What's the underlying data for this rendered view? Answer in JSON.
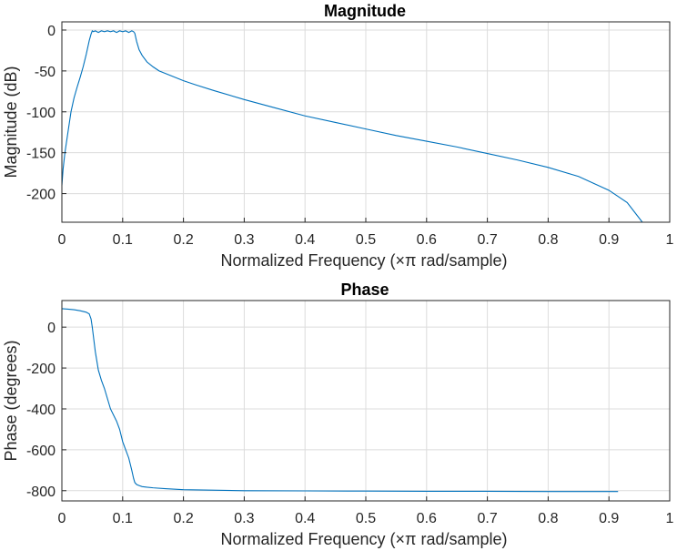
{
  "chart_data": [
    {
      "type": "line",
      "title": "Magnitude",
      "xlabel": "Normalized Frequency  (×π rad/sample)",
      "ylabel": "Magnitude (dB)",
      "xlim": [
        0,
        1
      ],
      "ylim": [
        -235,
        10
      ],
      "xticks": [
        0,
        0.1,
        0.2,
        0.3,
        0.4,
        0.5,
        0.6,
        0.7,
        0.8,
        0.9,
        1
      ],
      "xtick_labels": [
        "0",
        "0.1",
        "0.2",
        "0.3",
        "0.4",
        "0.5",
        "0.6",
        "0.7",
        "0.8",
        "0.9",
        "1"
      ],
      "yticks": [
        0,
        -50,
        -100,
        -150,
        -200
      ],
      "ytick_labels": [
        "0",
        "-50",
        "-100",
        "-150",
        "-200"
      ],
      "grid": true,
      "color": "#0072BD",
      "series": [
        {
          "x": [
            0,
            0.002,
            0.005,
            0.01,
            0.015,
            0.02,
            0.025,
            0.03,
            0.035,
            0.04,
            0.045,
            0.048,
            0.05,
            0.052,
            0.055,
            0.06,
            0.065,
            0.07,
            0.075,
            0.08,
            0.085,
            0.09,
            0.095,
            0.1,
            0.105,
            0.11,
            0.115,
            0.118,
            0.12,
            0.123,
            0.127,
            0.132,
            0.14,
            0.15,
            0.16,
            0.18,
            0.2,
            0.22,
            0.25,
            0.3,
            0.35,
            0.4,
            0.45,
            0.5,
            0.55,
            0.6,
            0.65,
            0.7,
            0.75,
            0.8,
            0.85,
            0.9,
            0.93,
            0.955
          ],
          "y": [
            -190,
            -170,
            -150,
            -125,
            -100,
            -83,
            -70,
            -58,
            -45,
            -30,
            -13,
            -5,
            -1,
            -2,
            -1,
            -3,
            -1,
            -2,
            -1,
            -2,
            -1,
            -3,
            -1,
            -2,
            -1,
            -3,
            -1,
            -2,
            -4,
            -14,
            -24,
            -31,
            -39,
            -45,
            -50,
            -56,
            -62,
            -67,
            -74,
            -85,
            -95,
            -105,
            -113,
            -121,
            -129,
            -136,
            -143,
            -151,
            -159,
            -168,
            -179,
            -196,
            -211,
            -235
          ]
        }
      ]
    },
    {
      "type": "line",
      "title": "Phase",
      "xlabel": "Normalized Frequency  (×π rad/sample)",
      "ylabel": "Phase (degrees)",
      "xlim": [
        0,
        1
      ],
      "ylim": [
        -850,
        130
      ],
      "xticks": [
        0,
        0.1,
        0.2,
        0.3,
        0.4,
        0.5,
        0.6,
        0.7,
        0.8,
        0.9,
        1
      ],
      "xtick_labels": [
        "0",
        "0.1",
        "0.2",
        "0.3",
        "0.4",
        "0.5",
        "0.6",
        "0.7",
        "0.8",
        "0.9",
        "1"
      ],
      "yticks": [
        0,
        -200,
        -400,
        -600,
        -800
      ],
      "ytick_labels": [
        "0",
        "-200",
        "-400",
        "-600",
        "-800"
      ],
      "grid": true,
      "color": "#0072BD",
      "series": [
        {
          "x": [
            0,
            0.01,
            0.02,
            0.03,
            0.04,
            0.045,
            0.048,
            0.05,
            0.055,
            0.06,
            0.065,
            0.07,
            0.075,
            0.08,
            0.085,
            0.09,
            0.095,
            0.1,
            0.105,
            0.11,
            0.115,
            0.118,
            0.12,
            0.123,
            0.127,
            0.132,
            0.14,
            0.15,
            0.17,
            0.2,
            0.3,
            0.4,
            0.5,
            0.6,
            0.7,
            0.8,
            0.9,
            0.915
          ],
          "y": [
            90,
            88,
            85,
            80,
            73,
            65,
            40,
            0,
            -120,
            -210,
            -260,
            -300,
            -350,
            -400,
            -430,
            -460,
            -500,
            -560,
            -600,
            -640,
            -700,
            -740,
            -760,
            -770,
            -775,
            -780,
            -783,
            -786,
            -790,
            -795,
            -800,
            -801,
            -802,
            -803,
            -803,
            -804,
            -804,
            -804
          ]
        }
      ]
    }
  ]
}
